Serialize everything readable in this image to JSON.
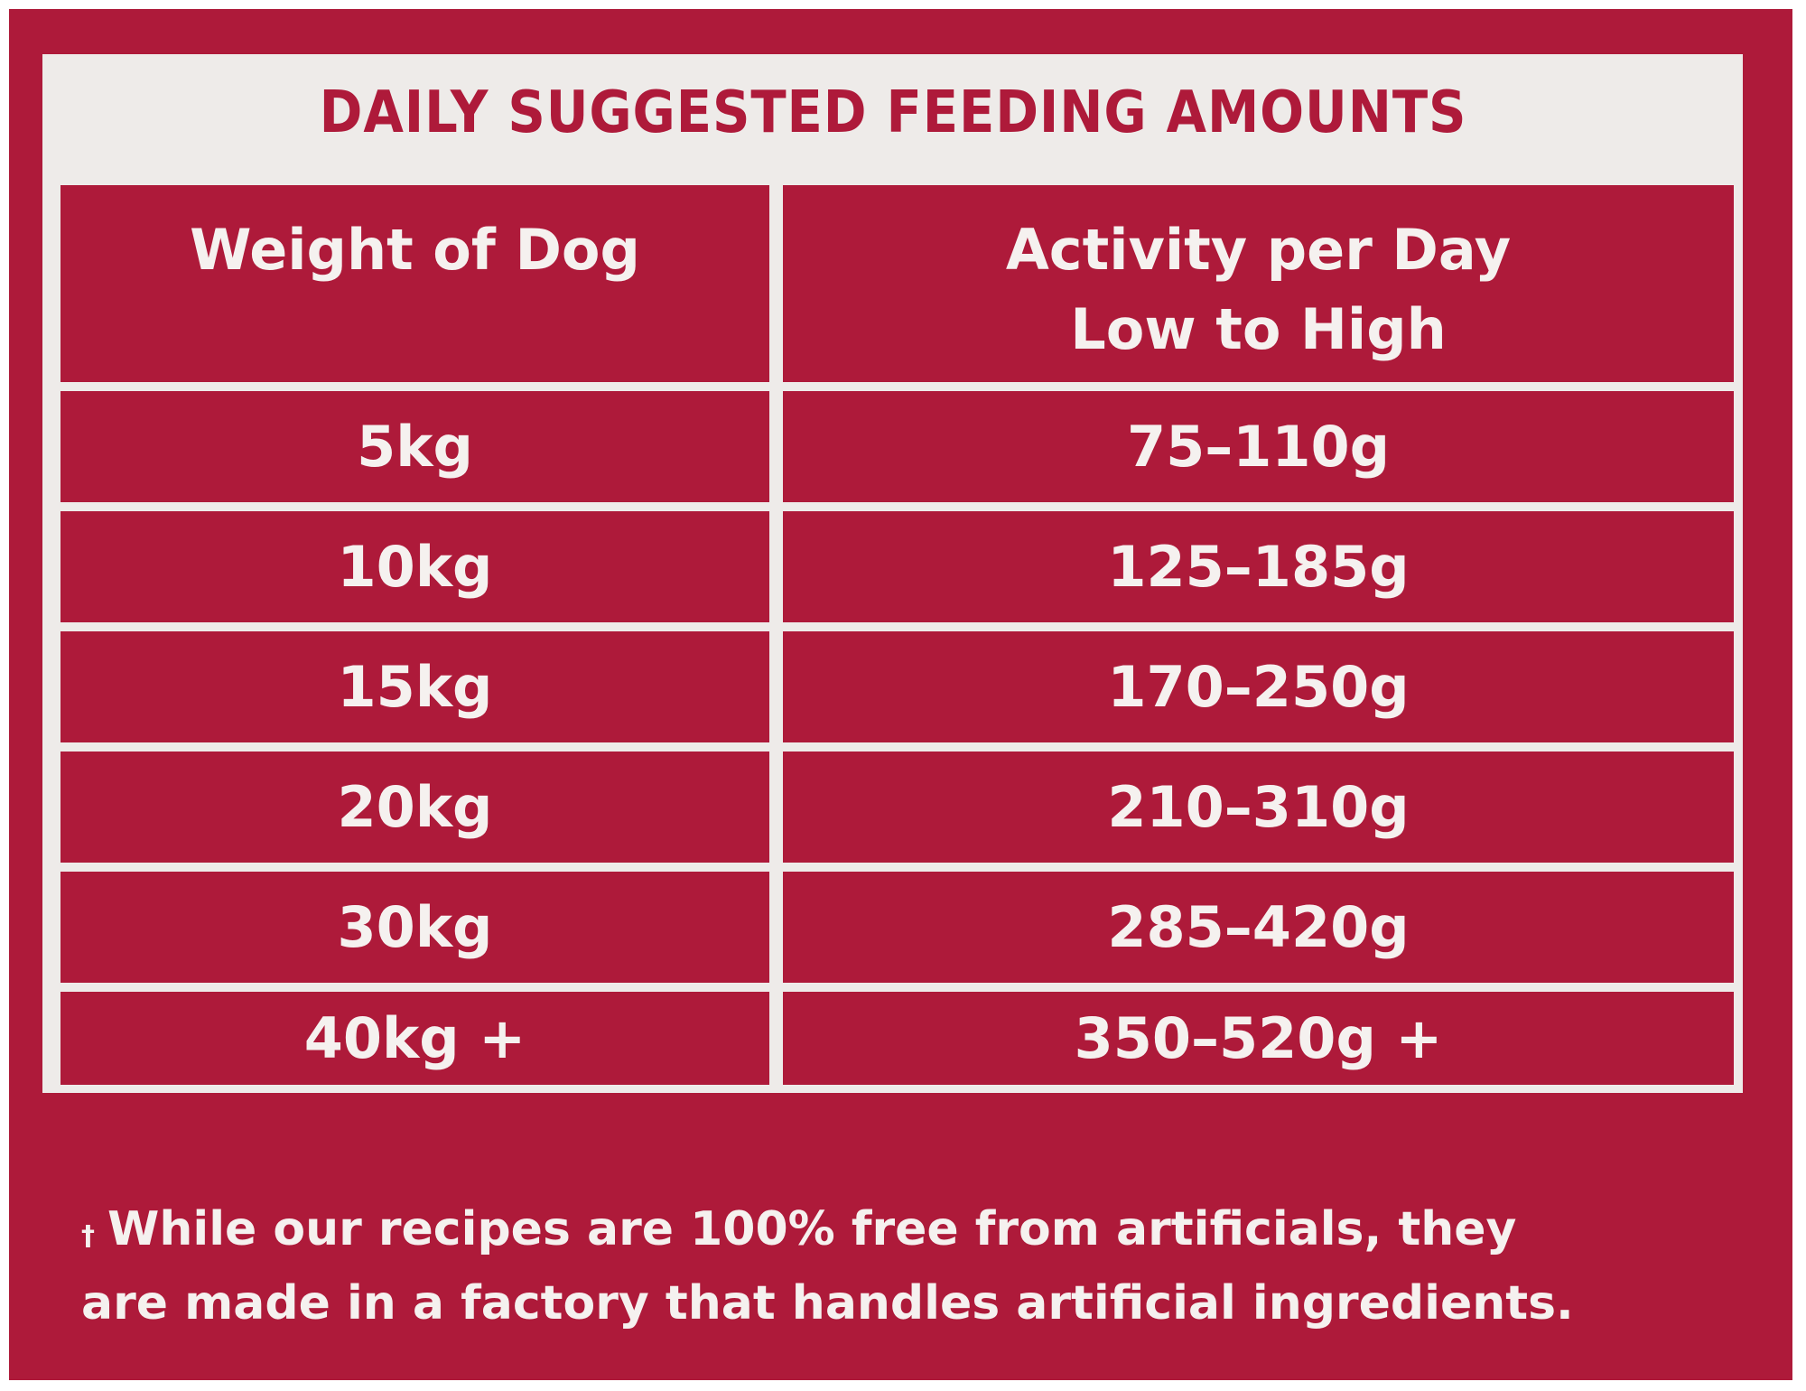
{
  "title": "DAILY SUGGESTED FEEDING AMOUNTS",
  "columns": {
    "weight_header": "Weight of Dog",
    "activity_header_line1": "Activity per Day",
    "activity_header_line2": "Low to High"
  },
  "rows": [
    {
      "weight": "5kg",
      "amount": "75–110g"
    },
    {
      "weight": "10kg",
      "amount": "125–185g"
    },
    {
      "weight": "15kg",
      "amount": "170–250g"
    },
    {
      "weight": "20kg",
      "amount": "210–310g"
    },
    {
      "weight": "30kg",
      "amount": "285–420g"
    },
    {
      "weight": "40kg +",
      "amount": "350–520g +"
    }
  ],
  "footnote": {
    "marker": "†",
    "line1": "While our recipes are 100% free from artificials, they",
    "line2": "are made in a factory that handles artificial ingredients."
  },
  "colors": {
    "brand_red": "#ae1a3a",
    "panel_cream": "#eeebe9",
    "text_light": "#f5f1ef"
  }
}
